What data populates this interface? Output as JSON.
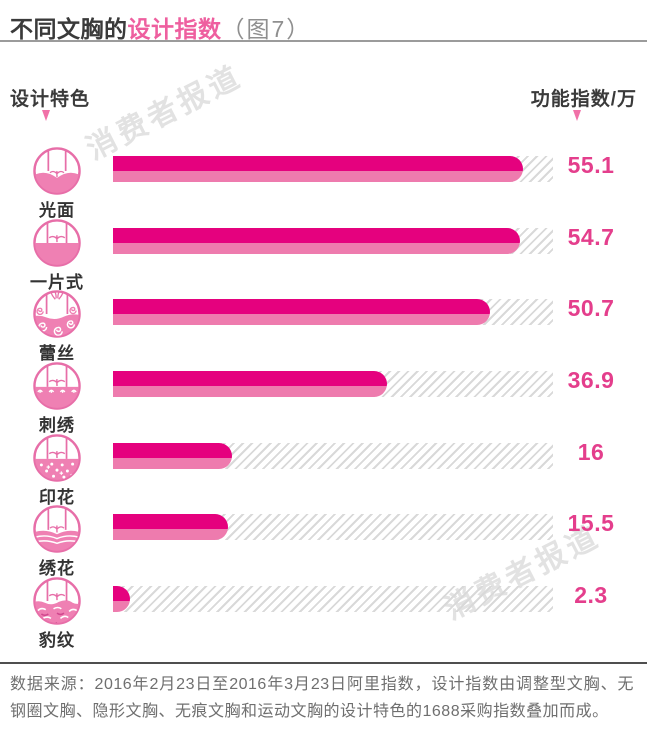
{
  "title": {
    "prefix": "不同文胸的",
    "highlight": "设计指数",
    "suffix": "（图7）"
  },
  "axis": {
    "left_label": "设计特色",
    "right_label": "功能指数/万"
  },
  "watermark": "消费者报道",
  "chart_data": {
    "type": "bar",
    "orientation": "horizontal",
    "title": "不同文胸的设计指数（图7）",
    "xlabel": "功能指数/万",
    "ylabel": "设计特色",
    "categories": [
      "光面",
      "一片式",
      "蕾丝",
      "刺绣",
      "印花",
      "绣花",
      "豹纹"
    ],
    "values": [
      55.1,
      54.7,
      50.7,
      36.9,
      16,
      15.5,
      2.3
    ],
    "icons": [
      "smooth-bra-icon",
      "one-piece-bra-icon",
      "lace-bra-icon",
      "embroidery-bra-icon",
      "print-bra-icon",
      "stitched-flower-bra-icon",
      "leopard-bra-icon"
    ],
    "value_axis_max": 59.2,
    "grid": "hatched-track-background",
    "legend": "none",
    "colors": {
      "bar_top": "#e5017e",
      "bar_bottom": "#ee7bae",
      "value_text": "#e43e8c",
      "title_highlight": "#ee5f9f",
      "icon_pink": "#ef80b3"
    }
  },
  "footer": {
    "source_text": "数据来源：2016年2月23日至2016年3月23日阿里指数，设计指数由调整型文胸、无钢圈文胸、隐形文胸、无痕文胸和运动文胸的设计特色的1688采购指数叠加而成。"
  }
}
